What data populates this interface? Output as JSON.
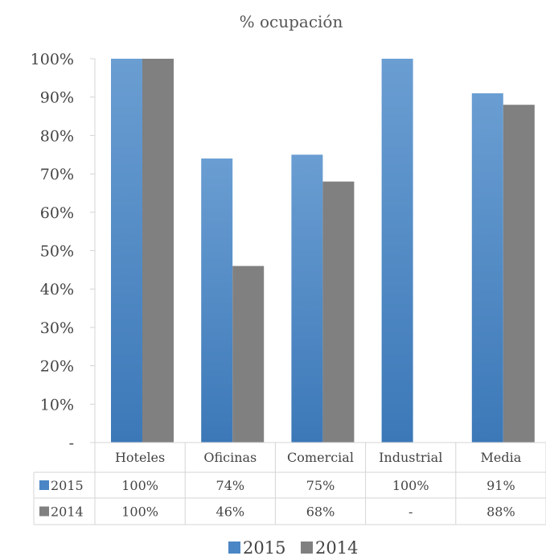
{
  "chart_data": {
    "type": "bar",
    "title": "% ocupación",
    "categories": [
      "Hoteles",
      "Oficinas",
      "Comercial",
      "Industrial",
      "Media"
    ],
    "series": [
      {
        "name": "2015",
        "values": [
          100,
          74,
          75,
          100,
          91
        ],
        "table_labels": [
          "100%",
          "74%",
          "75%",
          "100%",
          "91%"
        ],
        "color": "#4a86c5"
      },
      {
        "name": "2014",
        "values": [
          100,
          46,
          68,
          null,
          88
        ],
        "table_labels": [
          "100%",
          "46%",
          "68%",
          "-",
          "88%"
        ],
        "color": "#808080"
      }
    ],
    "y_ticks": [
      "-",
      "10%",
      "20%",
      "30%",
      "40%",
      "50%",
      "60%",
      "70%",
      "80%",
      "90%",
      "100%"
    ],
    "ylim": [
      0,
      100
    ],
    "ylabel": "",
    "xlabel": "",
    "grid": false,
    "data_table": true,
    "legend_position": "bottom"
  }
}
